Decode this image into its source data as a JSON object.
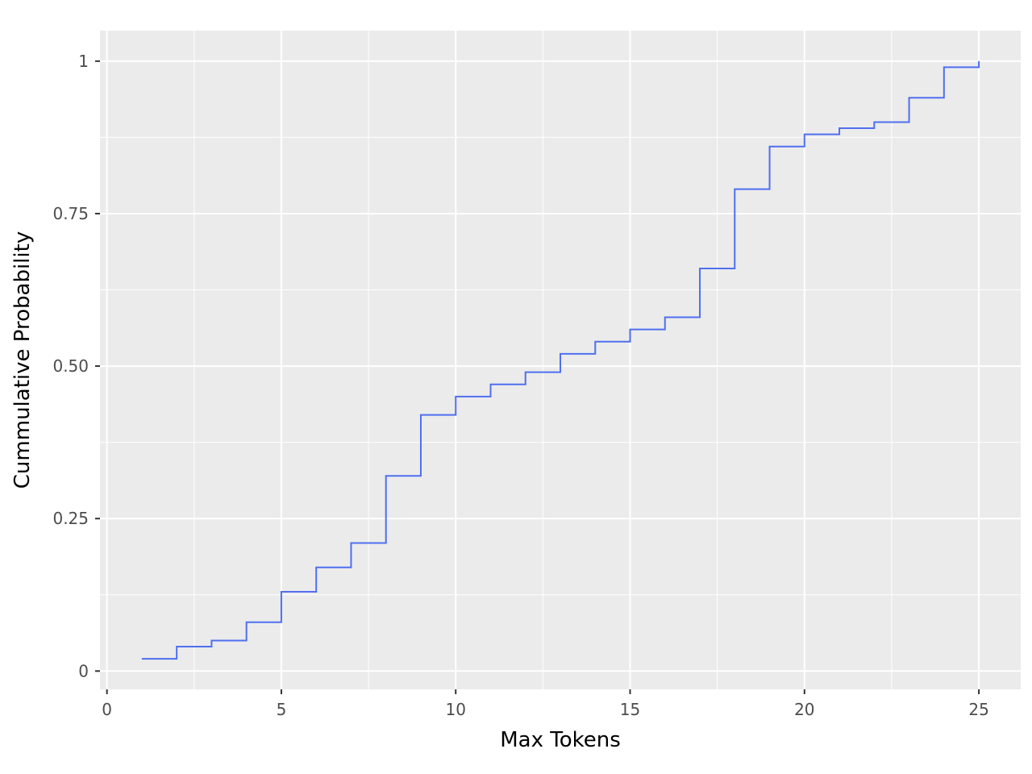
{
  "chart_data": {
    "type": "line",
    "step": "post",
    "xlabel": "Max Tokens",
    "ylabel": "Cummulative Probability",
    "xlim": [
      -0.2,
      26.2
    ],
    "ylim": [
      -0.03,
      1.05
    ],
    "x_ticks": [
      {
        "value": 0,
        "label": "0"
      },
      {
        "value": 5,
        "label": "5"
      },
      {
        "value": 10,
        "label": "10"
      },
      {
        "value": 15,
        "label": "15"
      },
      {
        "value": 20,
        "label": "20"
      },
      {
        "value": 25,
        "label": "25"
      }
    ],
    "y_ticks": [
      {
        "value": 0,
        "label": "0"
      },
      {
        "value": 0.25,
        "label": "0.25"
      },
      {
        "value": 0.5,
        "label": "0.50"
      },
      {
        "value": 0.75,
        "label": "0.75"
      },
      {
        "value": 1,
        "label": "1"
      }
    ],
    "grid": true,
    "colors": {
      "panel_background": "#ebebeb",
      "grid_line": "#ffffff",
      "series": "#4f6ff0"
    },
    "x": [
      1,
      2,
      3,
      4,
      5,
      6,
      7,
      8,
      9,
      10,
      11,
      12,
      13,
      14,
      15,
      16,
      17,
      18,
      19,
      20,
      21,
      22,
      23,
      24,
      25
    ],
    "values": [
      0.02,
      0.04,
      0.05,
      0.08,
      0.13,
      0.17,
      0.21,
      0.32,
      0.42,
      0.45,
      0.47,
      0.49,
      0.52,
      0.54,
      0.56,
      0.58,
      0.66,
      0.79,
      0.86,
      0.88,
      0.89,
      0.9,
      0.94,
      0.99,
      1.0
    ]
  }
}
